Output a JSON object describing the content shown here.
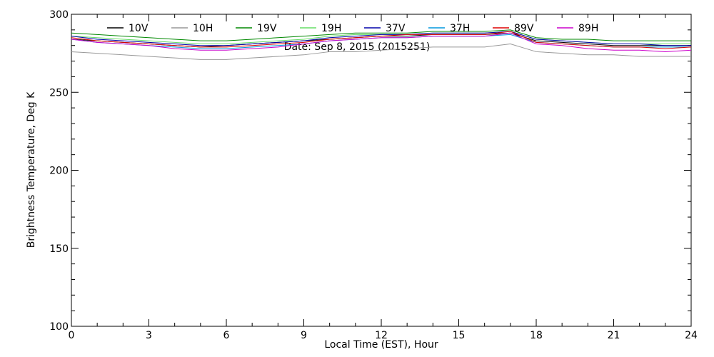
{
  "chart_data": {
    "type": "line",
    "x_label": "Local Time (EST), Hour",
    "y_label": "Brightness Temperature, Deg K",
    "annotation": "Date: Sep  8, 2015 (2015251)",
    "x": [
      0,
      1,
      2,
      3,
      4,
      5,
      6,
      7,
      8,
      9,
      10,
      11,
      12,
      13,
      14,
      15,
      16,
      17,
      18,
      19,
      20,
      21,
      22,
      23,
      24
    ],
    "xlim": [
      0,
      24
    ],
    "xticks": [
      0,
      3,
      6,
      9,
      12,
      15,
      18,
      21,
      24
    ],
    "ylim": [
      100,
      300
    ],
    "yticks": [
      100,
      150,
      200,
      250,
      300
    ],
    "series": [
      {
        "name": "10V",
        "color": "#000000",
        "values": [
          284,
          283,
          282,
          281,
          280,
          279,
          280,
          281,
          282,
          283,
          284,
          285,
          286,
          286,
          287,
          287,
          287,
          288,
          283,
          282,
          281,
          280,
          280,
          280,
          280
        ]
      },
      {
        "name": "10H",
        "color": "#999999",
        "values": [
          276,
          275,
          274,
          273,
          272,
          271,
          271,
          272,
          273,
          274,
          276,
          276,
          277,
          278,
          279,
          279,
          279,
          281,
          276,
          275,
          274,
          274,
          273,
          273,
          273
        ]
      },
      {
        "name": "19V",
        "color": "#008800",
        "values": [
          288,
          287,
          286,
          285,
          284,
          283,
          283,
          284,
          285,
          286,
          287,
          288,
          288,
          288,
          289,
          289,
          289,
          290,
          285,
          284,
          284,
          283,
          283,
          283,
          283
        ]
      },
      {
        "name": "19H",
        "color": "#66dd66",
        "values": [
          286,
          285,
          284,
          283,
          282,
          281,
          281,
          282,
          283,
          284,
          286,
          287,
          287,
          287,
          288,
          288,
          288,
          289,
          284,
          283,
          282,
          281,
          281,
          281,
          281
        ]
      },
      {
        "name": "37V",
        "color": "#0000aa",
        "values": [
          286,
          284,
          283,
          282,
          281,
          280,
          280,
          281,
          282,
          283,
          285,
          286,
          287,
          287,
          288,
          288,
          288,
          289,
          284,
          283,
          282,
          281,
          281,
          280,
          280
        ]
      },
      {
        "name": "37H",
        "color": "#0099dd",
        "values": [
          284,
          282,
          281,
          280,
          279,
          278,
          278,
          279,
          280,
          281,
          283,
          284,
          285,
          285,
          286,
          286,
          286,
          287,
          282,
          281,
          280,
          279,
          279,
          279,
          279
        ]
      },
      {
        "name": "89V",
        "color": "#dd0000",
        "values": [
          285,
          283,
          282,
          281,
          280,
          279,
          279,
          280,
          281,
          282,
          284,
          285,
          286,
          287,
          287,
          287,
          287,
          289,
          282,
          281,
          280,
          279,
          279,
          278,
          279
        ]
      },
      {
        "name": "89H",
        "color": "#cc00cc",
        "values": [
          284,
          282,
          281,
          280,
          278,
          277,
          277,
          278,
          279,
          281,
          283,
          284,
          285,
          285,
          286,
          286,
          286,
          288,
          281,
          280,
          278,
          277,
          277,
          276,
          277
        ]
      }
    ]
  }
}
